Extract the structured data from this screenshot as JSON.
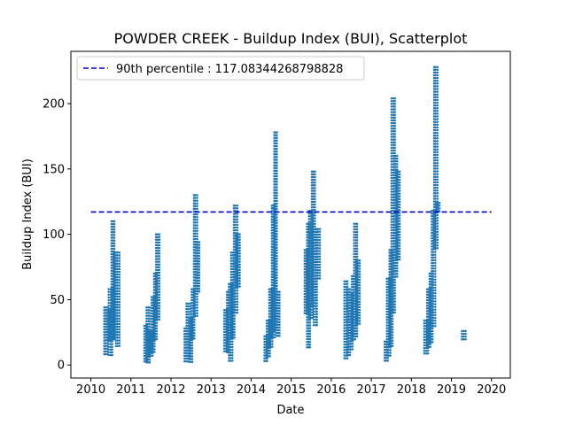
{
  "chart_data": {
    "type": "scatter",
    "title": "POWDER CREEK - Buildup Index (BUI), Scatterplot",
    "xlabel": "Date",
    "ylabel": "Buildup Index (BUI)",
    "xlim": [
      2009.5,
      2020.47
    ],
    "ylim": [
      -10,
      240
    ],
    "xticks": [
      "2010",
      "2011",
      "2012",
      "2013",
      "2014",
      "2015",
      "2016",
      "2017",
      "2018",
      "2019",
      "2020"
    ],
    "yticks": [
      "0",
      "50",
      "100",
      "150",
      "200"
    ],
    "grid": false,
    "legend_position": "top-left",
    "reference_line": {
      "label": "90th percentile : 117.08344268798828",
      "value": 117.08344268798828,
      "x_range": [
        2010.0,
        2020.0
      ],
      "color": "#0000cc",
      "style": "dashed"
    },
    "point_color": "#1f77b4",
    "seasons": [
      {
        "x": [
          2010.37,
          2010.43,
          2010.49,
          2010.55,
          2010.61,
          2010.67
        ],
        "min": [
          8,
          18,
          6,
          18,
          20,
          14
        ],
        "max": [
          44,
          42,
          58,
          110,
          86,
          86
        ]
      },
      {
        "x": [
          2011.37,
          2011.43,
          2011.49,
          2011.55,
          2011.61,
          2011.67
        ],
        "min": [
          2,
          2,
          6,
          8,
          18,
          34
        ],
        "max": [
          30,
          44,
          26,
          52,
          70,
          100
        ]
      },
      {
        "x": [
          2012.37,
          2012.43,
          2012.49,
          2012.55,
          2012.61,
          2012.67
        ],
        "min": [
          2,
          4,
          2,
          20,
          36,
          56
        ],
        "max": [
          28,
          47,
          36,
          58,
          130,
          94
        ]
      },
      {
        "x": [
          2013.37,
          2013.43,
          2013.49,
          2013.55,
          2013.61,
          2013.67
        ],
        "min": [
          10,
          8,
          2,
          20,
          38,
          60
        ],
        "max": [
          42,
          56,
          62,
          86,
          122,
          100
        ]
      },
      {
        "x": [
          2014.37,
          2014.43,
          2014.49,
          2014.55,
          2014.61,
          2014.67
        ],
        "min": [
          3,
          6,
          12,
          20,
          26,
          22
        ],
        "max": [
          22,
          34,
          58,
          122,
          178,
          56
        ]
      },
      {
        "x": [
          2015.37,
          2015.43,
          2015.49,
          2015.55,
          2015.61,
          2015.67
        ],
        "min": [
          38,
          12,
          34,
          44,
          30,
          66
        ],
        "max": [
          88,
          108,
          118,
          148,
          104,
          104
        ]
      },
      {
        "x": [
          2016.37,
          2016.43,
          2016.49,
          2016.55,
          2016.61,
          2016.67
        ],
        "min": [
          4,
          6,
          10,
          18,
          20,
          30
        ],
        "max": [
          64,
          58,
          54,
          68,
          108,
          80
        ]
      },
      {
        "x": [
          2017.37,
          2017.43,
          2017.49,
          2017.55,
          2017.61,
          2017.67
        ],
        "min": [
          2,
          6,
          14,
          40,
          66,
          80
        ],
        "max": [
          18,
          66,
          88,
          204,
          160,
          148
        ]
      },
      {
        "x": [
          2018.37,
          2018.43,
          2018.49,
          2018.55,
          2018.61,
          2018.67
        ],
        "min": [
          8,
          12,
          16,
          28,
          88,
          116
        ],
        "max": [
          34,
          58,
          70,
          118,
          228,
          124
        ]
      },
      {
        "x": [
          2019.31
        ],
        "min": [
          18
        ],
        "max": [
          26
        ]
      }
    ]
  }
}
